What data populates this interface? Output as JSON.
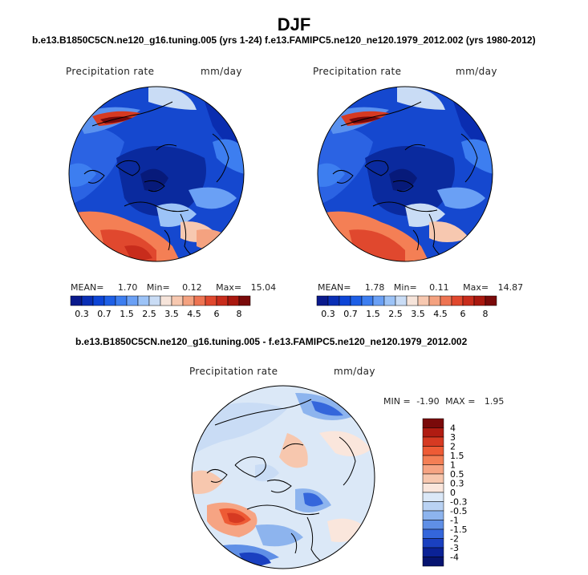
{
  "figure": {
    "title": "DJF",
    "case_left": "b.e13.B1850C5CN.ne120_g16.tuning.005 (yrs 1-24)",
    "case_right": "f.e13.FAMIPC5.ne120_ne120.1979_2012.002 (yrs 1980-2012)",
    "diff_title": "b.e13.B1850C5CN.ne120_g16.tuning.005 - f.e13.FAMIPC5.ne120_ne120.1979_2012.002"
  },
  "panels": [
    {
      "field": "Precipitation rate",
      "units": "mm/day",
      "stats": {
        "mean_label": "MEAN=",
        "mean": "1.70",
        "min_label": "Min=",
        "min": "0.12",
        "max_label": "Max=",
        "max": "15.04"
      }
    },
    {
      "field": "Precipitation rate",
      "units": "mm/day",
      "stats": {
        "mean_label": "MEAN=",
        "mean": "1.78",
        "min_label": "Min=",
        "min": "0.11",
        "max_label": "Max=",
        "max": "14.87"
      }
    }
  ],
  "diff_panel": {
    "field": "Precipitation rate",
    "units": "mm/day",
    "stats": {
      "min_label": "MIN =",
      "min": "-1.90",
      "max_label": "MAX =",
      "max": "1.95"
    }
  },
  "chart_data": [
    {
      "type": "heatmap",
      "title": "b.e13.B1850C5CN.ne120_g16.tuning.005 (yrs 1-24)",
      "subtitle": "Precipitation rate (mm/day)",
      "projection": "north polar stereographic",
      "colorbar_levels": [
        "0.3",
        "0.7",
        "1.5",
        "2.5",
        "3.5",
        "4.5",
        "6",
        "8"
      ],
      "colorbar_colors": [
        "#0a1a8c",
        "#0a2fb5",
        "#0e45d6",
        "#1e5fe6",
        "#3d7ef0",
        "#6aa0f5",
        "#9cc3f7",
        "#c9dcf5",
        "#f6e4da",
        "#f7c8b0",
        "#f4a280",
        "#ee7452",
        "#e0482e",
        "#c82c1c",
        "#a9180f",
        "#7a0a0a"
      ],
      "stats": {
        "mean": 1.7,
        "min": 0.12,
        "max": 15.04
      }
    },
    {
      "type": "heatmap",
      "title": "f.e13.FAMIPC5.ne120_ne120.1979_2012.002 (yrs 1980-2012)",
      "subtitle": "Precipitation rate (mm/day)",
      "projection": "north polar stereographic",
      "colorbar_levels": [
        "0.3",
        "0.7",
        "1.5",
        "2.5",
        "3.5",
        "4.5",
        "6",
        "8"
      ],
      "colorbar_colors": [
        "#0a1a8c",
        "#0a2fb5",
        "#0e45d6",
        "#1e5fe6",
        "#3d7ef0",
        "#6aa0f5",
        "#9cc3f7",
        "#c9dcf5",
        "#f6e4da",
        "#f7c8b0",
        "#f4a280",
        "#ee7452",
        "#e0482e",
        "#c82c1c",
        "#a9180f",
        "#7a0a0a"
      ],
      "stats": {
        "mean": 1.78,
        "min": 0.11,
        "max": 14.87
      }
    },
    {
      "type": "heatmap",
      "title": "b.e13.B1850C5CN.ne120_g16.tuning.005 - f.e13.FAMIPC5.ne120_ne120.1979_2012.002",
      "subtitle": "Precipitation rate (mm/day)",
      "projection": "north polar stereographic",
      "colorbar_levels": [
        "4",
        "3",
        "2",
        "1.5",
        "1",
        "0.5",
        "0.3",
        "0",
        "-0.3",
        "-0.5",
        "-1",
        "-1.5",
        "-2",
        "-3",
        "-4"
      ],
      "colorbar_colors": [
        "#7a0a0a",
        "#b01c12",
        "#d63a22",
        "#ee5b35",
        "#f47f55",
        "#f6a483",
        "#f7c7ae",
        "#fae6dc",
        "#dbe8f7",
        "#b9d2f3",
        "#8db4ee",
        "#5f8fe6",
        "#3466db",
        "#1a40c0",
        "#0b2296",
        "#071470"
      ],
      "stats": {
        "min": -1.9,
        "max": 1.95
      }
    }
  ]
}
